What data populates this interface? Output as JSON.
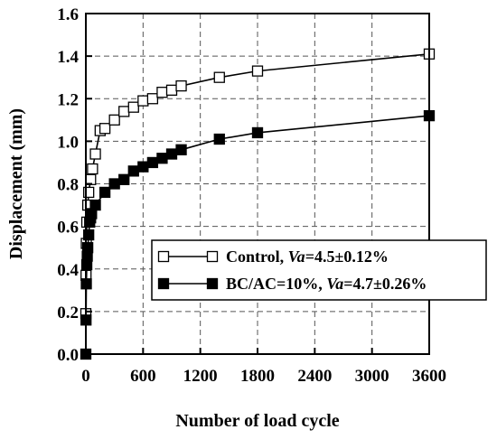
{
  "chart_data": {
    "type": "line",
    "xlabel": "Number of load cycle",
    "ylabel": "Displacement (mm)",
    "xlim": [
      0,
      3600
    ],
    "ylim": [
      0,
      1.6
    ],
    "xticks": [
      0,
      600,
      1200,
      1800,
      2400,
      3000,
      3600
    ],
    "yticks": [
      0.0,
      0.2,
      0.4,
      0.6,
      0.8,
      1.0,
      1.2,
      1.4,
      1.6
    ],
    "xtick_labels": [
      "0",
      "600",
      "1200",
      "1800",
      "2400",
      "3000",
      "3600"
    ],
    "ytick_labels": [
      "0.0",
      "0.2",
      "0.4",
      "0.6",
      "0.8",
      "1.0",
      "1.2",
      "1.4",
      "1.6"
    ],
    "grid": "dashed",
    "legend_position": "bottom-right",
    "series": [
      {
        "name": "Control, Va=4.5±0.12%",
        "legend_prefix": "Control, ",
        "legend_italic": "Va",
        "legend_suffix": "=4.5±0.12%",
        "marker": "open-square",
        "x": [
          0,
          2,
          5,
          10,
          20,
          30,
          50,
          70,
          100,
          150,
          200,
          300,
          400,
          500,
          600,
          700,
          800,
          900,
          1000,
          1400,
          1800,
          3600
        ],
        "y": [
          0.19,
          0.37,
          0.52,
          0.62,
          0.7,
          0.76,
          0.82,
          0.87,
          0.94,
          1.05,
          1.06,
          1.1,
          1.14,
          1.16,
          1.19,
          1.2,
          1.23,
          1.24,
          1.26,
          1.3,
          1.33,
          1.41
        ]
      },
      {
        "name": "BC/AC=10%, Va=4.7±0.26%",
        "legend_prefix": "BC/AC=10%, ",
        "legend_italic": "Va",
        "legend_suffix": "=4.7±0.26%",
        "marker": "filled-square",
        "x": [
          0,
          2,
          5,
          10,
          15,
          20,
          30,
          40,
          50,
          60,
          100,
          200,
          300,
          400,
          500,
          600,
          700,
          800,
          900,
          1000,
          1400,
          1800,
          3600
        ],
        "y": [
          0.0,
          0.16,
          0.33,
          0.42,
          0.46,
          0.5,
          0.56,
          0.62,
          0.64,
          0.66,
          0.7,
          0.76,
          0.8,
          0.82,
          0.86,
          0.88,
          0.9,
          0.92,
          0.94,
          0.96,
          1.01,
          1.04,
          1.12
        ]
      }
    ]
  }
}
